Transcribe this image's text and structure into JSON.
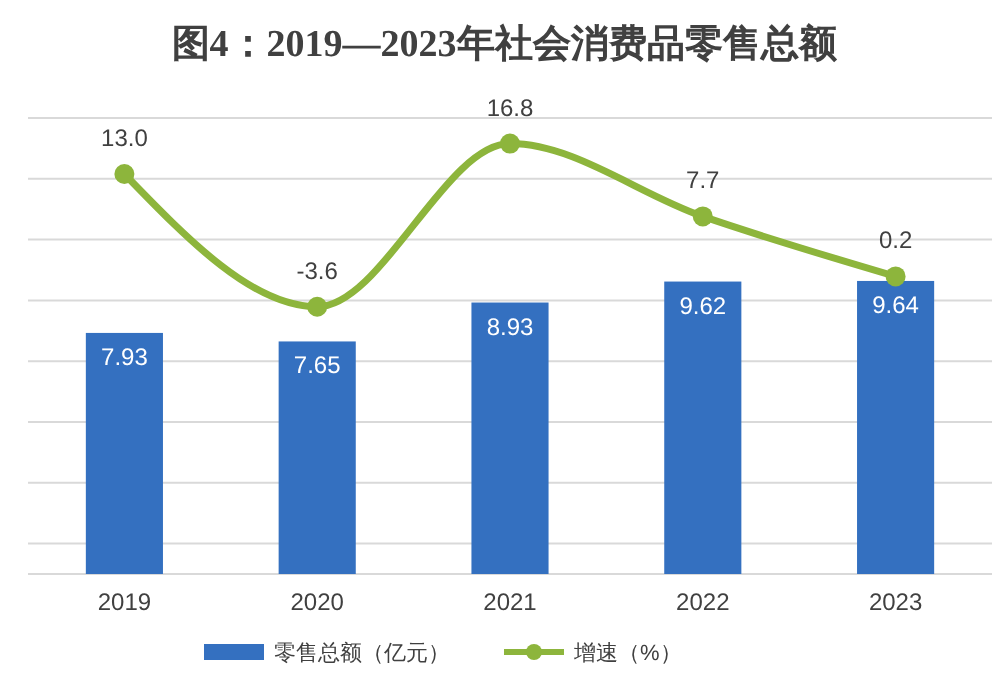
{
  "chart_data": {
    "type": "bar",
    "title": "图4：2019—2023年社会消费品零售总额",
    "categories": [
      "2019",
      "2020",
      "2021",
      "2022",
      "2023"
    ],
    "series": [
      {
        "name": "零售总额（亿元）",
        "color": "#3470c0",
        "values": [
          7.93,
          7.65,
          8.93,
          9.62,
          9.64
        ]
      },
      {
        "name": "增速（%）",
        "type": "line",
        "axis": "y2",
        "color": "#8db53c",
        "marker": "circle",
        "values": [
          13.0,
          -3.6,
          16.8,
          7.7,
          0.2
        ],
        "value_labels": [
          "13.0",
          "-3.6",
          "16.8",
          "7.7",
          "0.2"
        ]
      }
    ],
    "ylim": [
      0,
      15
    ],
    "yticks": [
      {
        "value": 0,
        "label": null
      },
      {
        "value": 1,
        "label": null
      },
      {
        "value": 3,
        "label": null
      },
      {
        "value": 5,
        "label": null
      },
      {
        "value": 7,
        "label": null
      },
      {
        "value": 9,
        "label": null
      },
      {
        "value": 11,
        "label": null
      },
      {
        "value": 13,
        "label": null
      },
      {
        "value": 15,
        "label": null
      }
    ],
    "y2lim": [
      -37,
      20
    ],
    "tick_labels": "x",
    "grid": "y",
    "legend": "bottom",
    "data_labels": true
  }
}
